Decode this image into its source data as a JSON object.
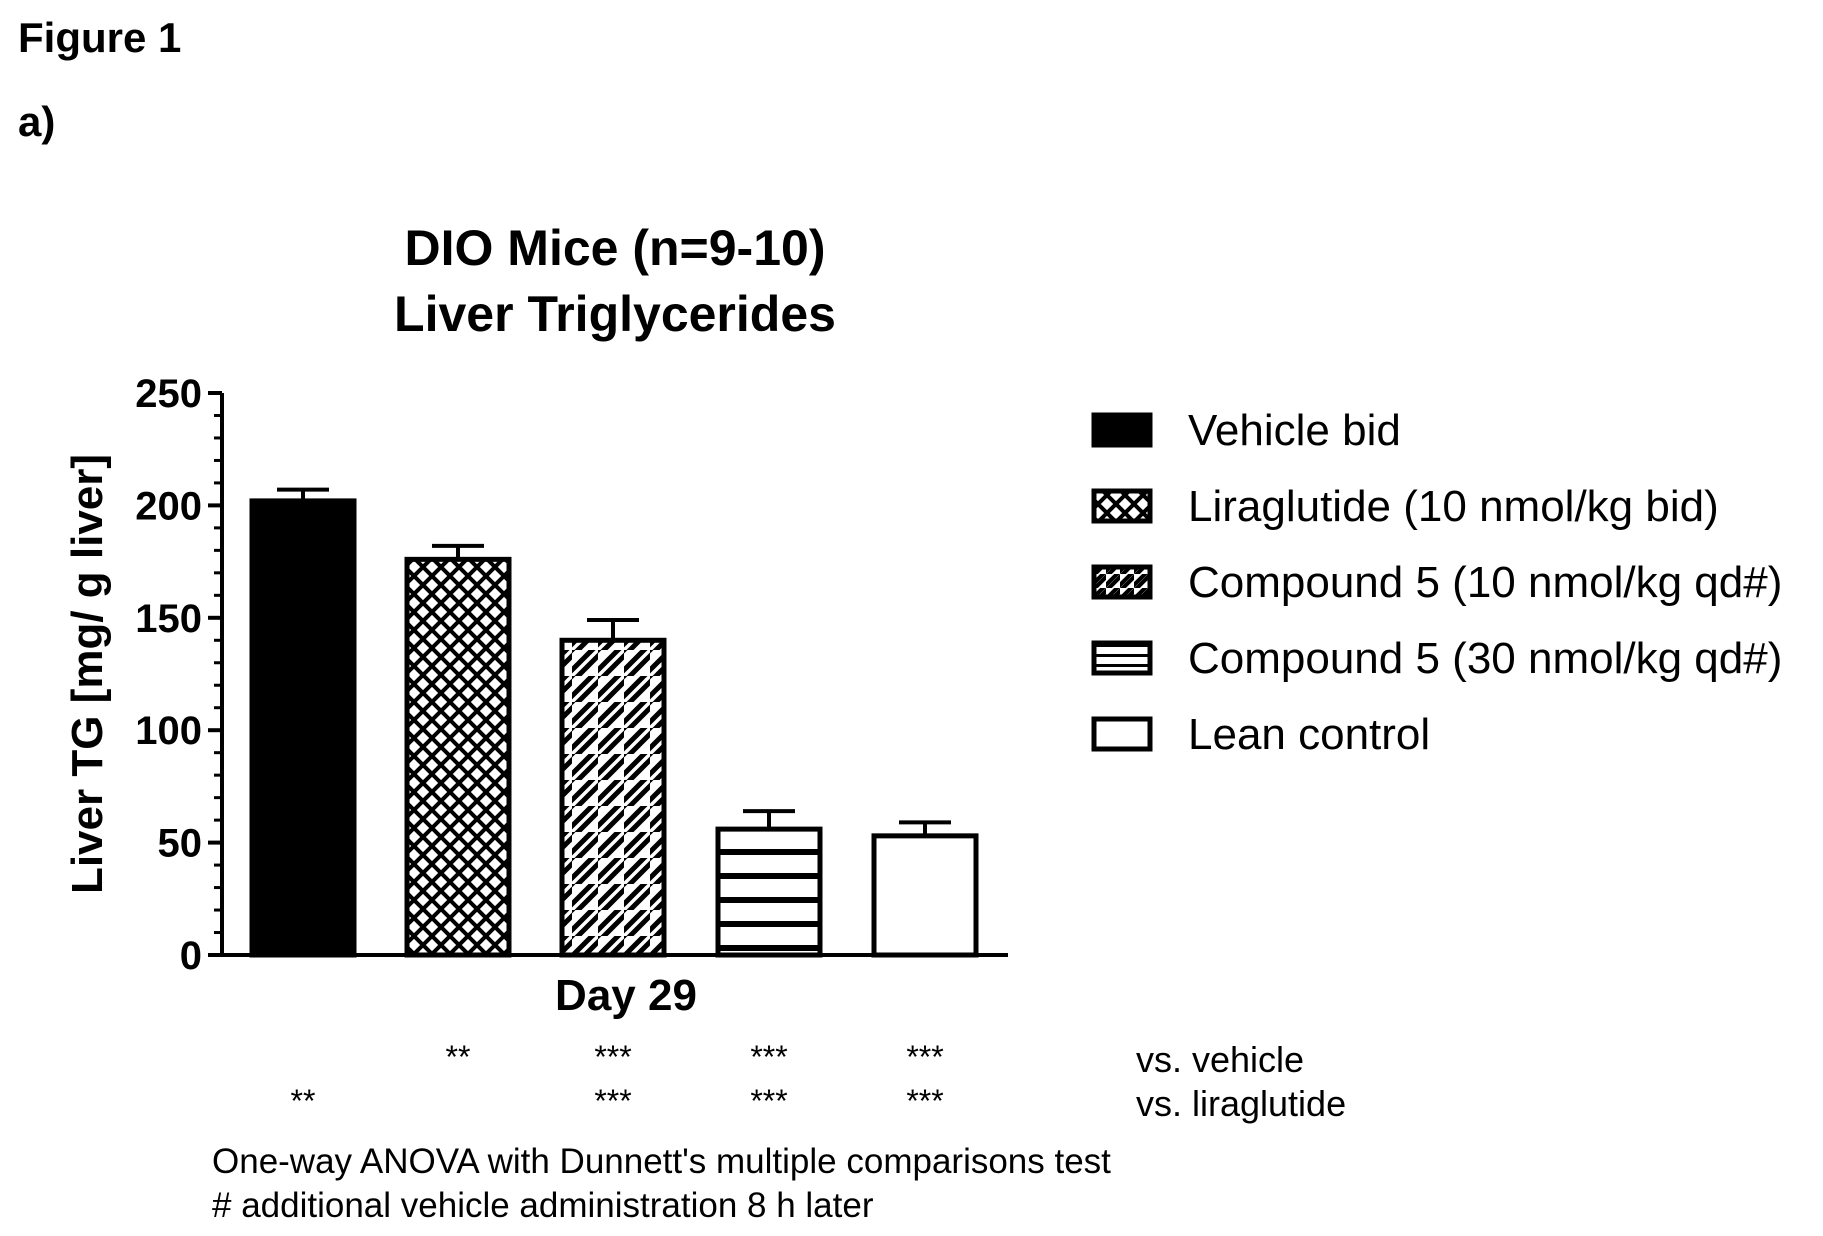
{
  "figure_label": "Figure 1",
  "panel_label": "a)",
  "chart_data": {
    "type": "bar",
    "title_lines": [
      "DIO Mice (n=9-10)",
      "Liver Triglycerides"
    ],
    "xlabel": "Day 29",
    "ylabel": "Liver TG [mg/ g liver]",
    "ylim": [
      0,
      250
    ],
    "yticks": [
      0,
      50,
      100,
      150,
      200,
      250
    ],
    "grid": false,
    "legend_position": "right",
    "series": [
      {
        "name": "Vehicle bid",
        "value": 202,
        "error": 5,
        "pattern": "solid"
      },
      {
        "name": "Liraglutide (10 nmol/kg bid)",
        "value": 176,
        "error": 6,
        "pattern": "crosshatch"
      },
      {
        "name": "Compound 5 (10 nmol/kg qd#)",
        "value": 140,
        "error": 9,
        "pattern": "diagonal"
      },
      {
        "name": "Compound 5 (30 nmol/kg qd#)",
        "value": 56,
        "error": 8,
        "pattern": "horizontal"
      },
      {
        "name": "Lean control",
        "value": 53,
        "error": 6,
        "pattern": "empty"
      }
    ],
    "significance": {
      "rows": [
        {
          "label": "vs. vehicle",
          "marks": [
            "",
            "**",
            "***",
            "***",
            "***"
          ]
        },
        {
          "label": "vs. liraglutide",
          "marks": [
            "**",
            "",
            "***",
            "***",
            "***"
          ]
        }
      ]
    }
  },
  "footnotes": [
    "One-way ANOVA with Dunnett's multiple comparisons test",
    "# additional vehicle administration 8 h later"
  ],
  "colors": {
    "ink": "#000000",
    "background": "#ffffff"
  }
}
